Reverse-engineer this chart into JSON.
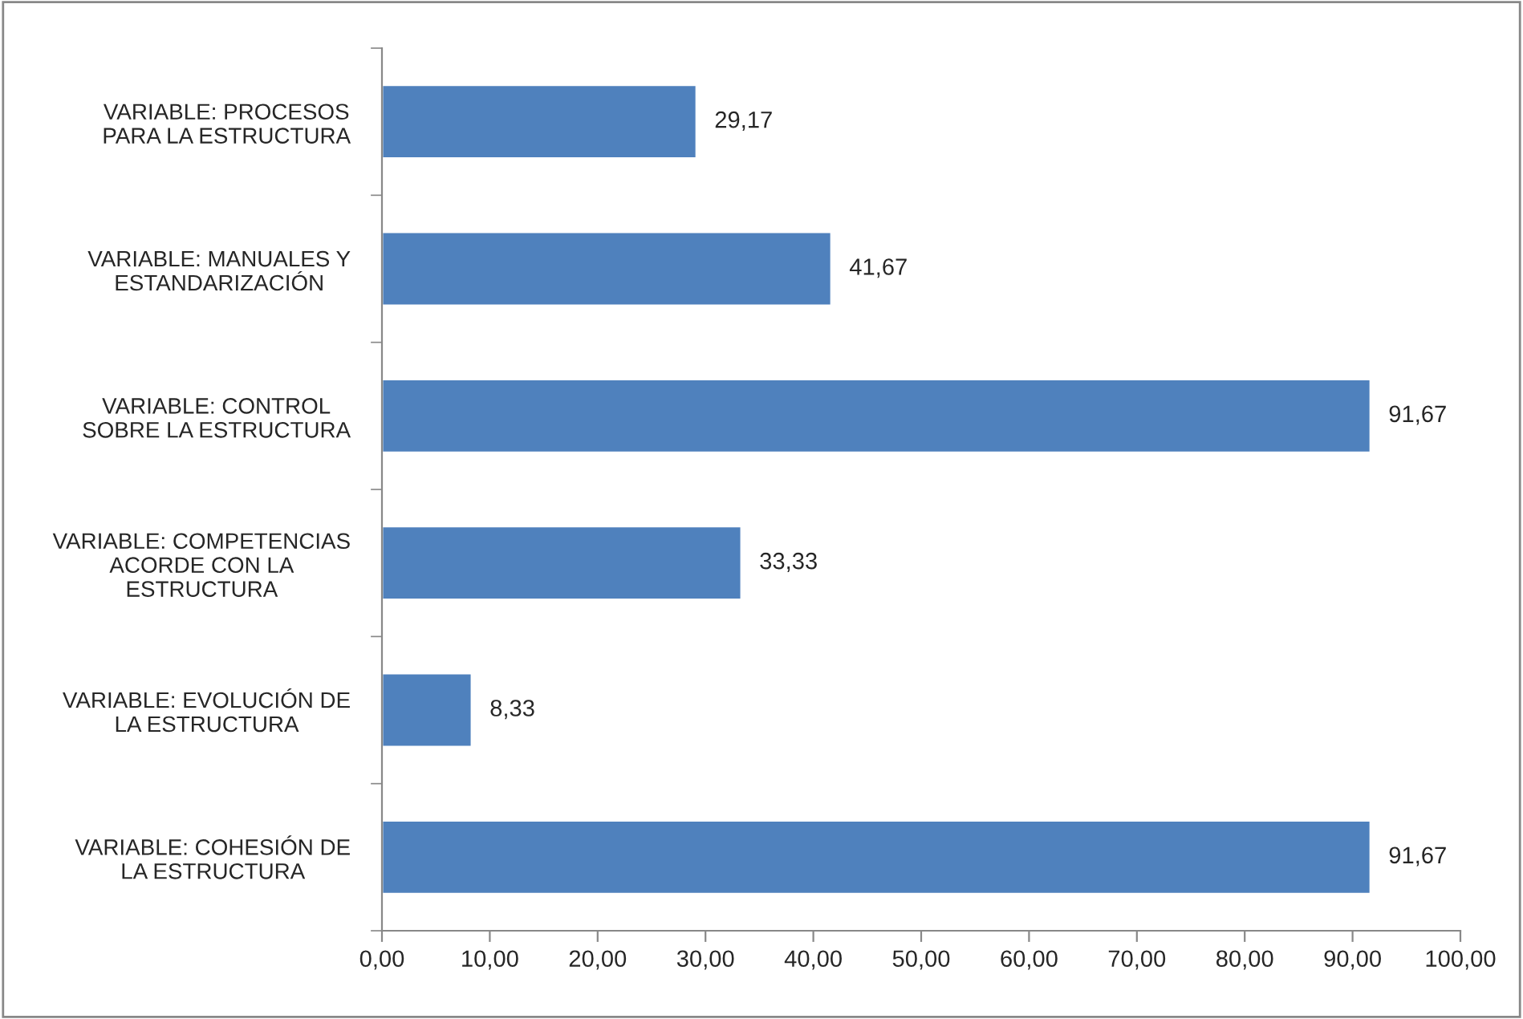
{
  "chart_data": {
    "type": "bar",
    "orientation": "horizontal",
    "categories": [
      "VARIABLE: PROCESOS PARA LA ESTRUCTURA",
      "VARIABLE: MANUALES Y ESTANDARIZACIÓN",
      "VARIABLE: CONTROL SOBRE LA ESTRUCTURA",
      "VARIABLE: COMPETENCIAS ACORDE CON LA ESTRUCTURA",
      "VARIABLE: EVOLUCIÓN DE LA ESTRUCTURA",
      "VARIABLE: COHESIÓN DE LA ESTRUCTURA"
    ],
    "values": [
      29.17,
      41.67,
      91.67,
      33.33,
      8.33,
      91.67
    ],
    "value_labels": [
      "29,17",
      "41,67",
      "91,67",
      "33,33",
      "8,33",
      "91,67"
    ],
    "color": "#4f81bd",
    "xlim": [
      0,
      100
    ],
    "xticks": [
      {
        "value": 0,
        "label": "0,00"
      },
      {
        "value": 10,
        "label": "10,00"
      },
      {
        "value": 20,
        "label": "20,00"
      },
      {
        "value": 30,
        "label": "30,00"
      },
      {
        "value": 40,
        "label": "40,00"
      },
      {
        "value": 50,
        "label": "50,00"
      },
      {
        "value": 60,
        "label": "60,00"
      },
      {
        "value": 70,
        "label": "70,00"
      },
      {
        "value": 80,
        "label": "80,00"
      },
      {
        "value": 90,
        "label": "90,00"
      },
      {
        "value": 100,
        "label": "100,00"
      }
    ],
    "grid": false,
    "legend": false
  }
}
